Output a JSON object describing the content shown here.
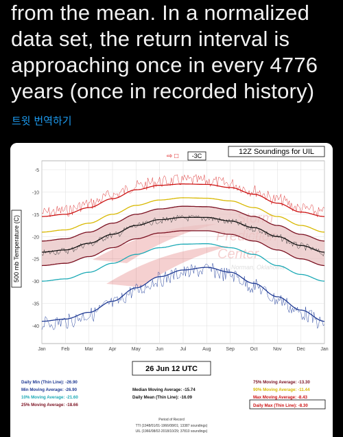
{
  "tweet": {
    "lines": [
      "from the mean. In a normalized",
      "data set, the return interval is",
      "approaching once in every 4776",
      "years (once in recorded history)"
    ],
    "translate_label": "트윗 번역하기"
  },
  "chart": {
    "title": "12Z Soundings for UIL",
    "current_value": "-3C",
    "date_label": "26 Jun 12 UTC",
    "ylabel": "500 mb Temperature (C)",
    "watermark": [
      "Storm",
      "Prediction",
      "Center"
    ],
    "watermark_sub": "Norman, Oklahoma",
    "stats_left": [
      {
        "label": "Daily Min (Thin Line): -26.90",
        "color": "#1f3a93"
      },
      {
        "label": "Min Moving Average: -26.90",
        "color": "#1f3a93"
      },
      {
        "label": "10% Moving Average: -21.60",
        "color": "#1aa9b5"
      },
      {
        "label": "25% Moving Average: -18.66",
        "color": "#7a1020"
      }
    ],
    "stats_mid": [
      {
        "label": "Median Moving Average: -15.74",
        "color": "#111111"
      },
      {
        "label": "Daily Mean (Thin Line): -16.09",
        "color": "#111111"
      }
    ],
    "stats_right": [
      {
        "label": "75% Moving Average: -13.30",
        "color": "#7a1020"
      },
      {
        "label": "90% Moving Average: -11.44",
        "color": "#d8b800"
      },
      {
        "label": "Max Moving Average: -8.43",
        "color": "#cc1111"
      },
      {
        "label": "Daily Max (Thin Line): -8.30",
        "color": "#cc1111"
      }
    ],
    "period_title": "Period of Record",
    "period_lines": [
      "TTI (1948/01/01-1966/08/01; 13387 soundings)",
      "UIL (1966/08/02-2018/10/29; 37810 soundings)"
    ]
  },
  "chart_data": {
    "type": "line",
    "title": "12Z Soundings for UIL",
    "ylabel": "500 mb Temperature (C)",
    "xlabel": "",
    "x_categories": [
      "Jan",
      "Feb",
      "Mar",
      "Apr",
      "May",
      "Jun",
      "Jul",
      "Aug",
      "Sep",
      "Oct",
      "Nov",
      "Dec",
      "Jan"
    ],
    "yticks": [
      -5,
      -10,
      -15,
      -20,
      -25,
      -30,
      -35,
      -40
    ],
    "ylim": [
      -44,
      -3
    ],
    "series": [
      {
        "name": "Max Moving Average",
        "color": "#cc1111",
        "values": [
          -15.5,
          -15,
          -13.5,
          -11.5,
          -9.5,
          -8.5,
          -8.2,
          -8.3,
          -9,
          -10.5,
          -12.5,
          -14.5,
          -15.5
        ]
      },
      {
        "name": "90% Moving Average",
        "color": "#d8b800",
        "values": [
          -19,
          -18.5,
          -17,
          -15,
          -13,
          -11.8,
          -11.3,
          -11.4,
          -12,
          -13.5,
          -15.5,
          -17.5,
          -19
        ]
      },
      {
        "name": "75% Moving Average",
        "color": "#7a1020",
        "values": [
          -21,
          -20.5,
          -19,
          -17,
          -15,
          -13.8,
          -13.2,
          -13.3,
          -14,
          -15.5,
          -17.5,
          -19.5,
          -21
        ]
      },
      {
        "name": "Median Moving Average",
        "color": "#111111",
        "values": [
          -23.5,
          -23,
          -21.5,
          -19.5,
          -17.5,
          -16.2,
          -15.7,
          -15.7,
          -16.5,
          -18,
          -20,
          -22,
          -23.5
        ]
      },
      {
        "name": "25% Moving Average",
        "color": "#7a1020",
        "values": [
          -26.5,
          -26,
          -24.5,
          -22.5,
          -20.5,
          -19.2,
          -18.7,
          -18.7,
          -19.5,
          -21,
          -23,
          -25,
          -26.5
        ]
      },
      {
        "name": "10% Moving Average",
        "color": "#1aa9b5",
        "values": [
          -30,
          -29.5,
          -28,
          -26,
          -24,
          -22.5,
          -21.7,
          -21.6,
          -22.5,
          -24,
          -26.5,
          -28.5,
          -30
        ]
      },
      {
        "name": "Min Moving Average",
        "color": "#1f3a93",
        "values": [
          -39,
          -38.5,
          -37,
          -34.5,
          -31.5,
          -29,
          -27.5,
          -26.9,
          -28,
          -30.5,
          -33.5,
          -36.5,
          -39
        ]
      }
    ]
  }
}
